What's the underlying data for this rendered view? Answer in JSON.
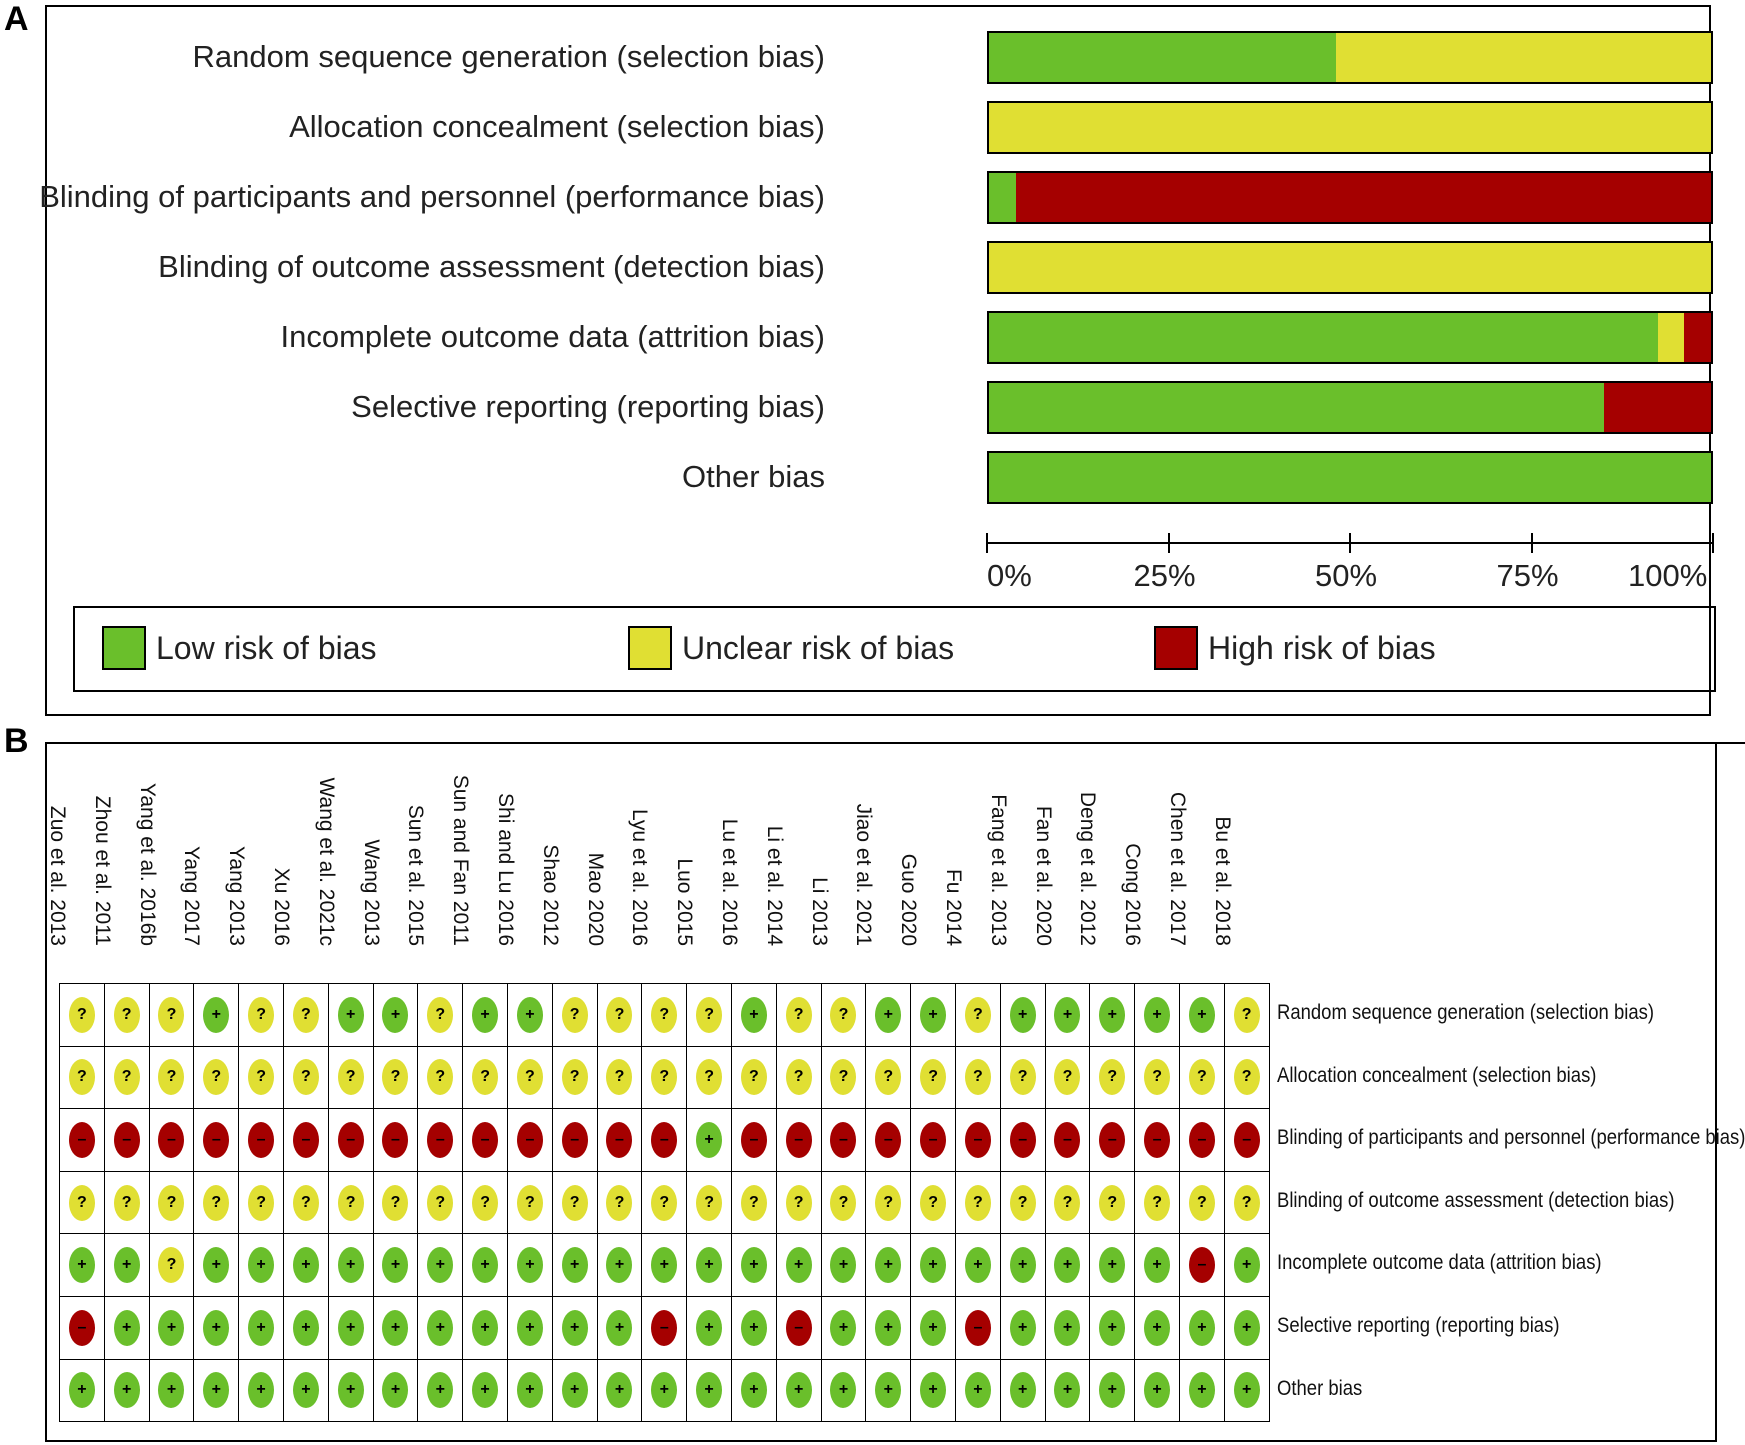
{
  "panel_labels": {
    "a": "A",
    "b": "B"
  },
  "colors": {
    "low": "#6abf2b",
    "unclear": "#e0df33",
    "high": "#a50000"
  },
  "symbols": {
    "low": "+",
    "unclear": "?",
    "high": "–"
  },
  "chart_data": [
    {
      "type": "bar",
      "orientation": "horizontal-stacked-percent",
      "title": "",
      "categories": [
        "Random sequence generation (selection bias)",
        "Allocation concealment (selection bias)",
        "Blinding of participants and personnel (performance bias)",
        "Blinding of outcome assessment (detection bias)",
        "Incomplete outcome data (attrition bias)",
        "Selective reporting (reporting bias)",
        "Other bias"
      ],
      "series": [
        {
          "name": "Low risk of bias",
          "key": "low",
          "values": [
            48.1,
            0,
            3.7,
            0,
            92.6,
            85.2,
            100
          ]
        },
        {
          "name": "Unclear risk of bias",
          "key": "unclear",
          "values": [
            51.9,
            100,
            0,
            100,
            3.7,
            0,
            0
          ]
        },
        {
          "name": "High risk of bias",
          "key": "high",
          "values": [
            0,
            0,
            96.3,
            0,
            3.7,
            14.8,
            0
          ]
        }
      ],
      "xlim": [
        0,
        100
      ],
      "xticks": [
        "0%",
        "25%",
        "50%",
        "75%",
        "100%"
      ],
      "legend": "bottom"
    },
    {
      "type": "table",
      "studies": [
        "Zuo et al. 2013",
        "Zhou et al. 2011",
        "Yang et al. 2016b",
        "Yang 2017",
        "Yang 2013",
        "Xu 2016",
        "Wang et al. 2021c",
        "Wang 2013",
        "Sun et al. 2015",
        "Sun and Fan 2011",
        "Shi and Lu 2016",
        "Shao 2012",
        "Mao 2020",
        "Lyu et al. 2016",
        "Luo 2015",
        "Lu et al. 2016",
        "Li et al. 2014",
        "Li 2013",
        "Jiao et al. 2021",
        "Guo 2020",
        "Fu 2014",
        "Fang et al. 2013",
        "Fan et al. 2020",
        "Deng et al. 2012",
        "Cong 2016",
        "Chen et al. 2017",
        "Bu et al. 2018"
      ],
      "domains": [
        "Random sequence generation (selection bias)",
        "Allocation concealment (selection bias)",
        "Blinding of participants and personnel (performance bias)",
        "Blinding of outcome assessment (detection bias)",
        "Incomplete outcome data (attrition bias)",
        "Selective reporting (reporting bias)",
        "Other bias"
      ],
      "judgements": [
        [
          "U",
          "U",
          "U",
          "L",
          "U",
          "U",
          "L",
          "L",
          "U",
          "L",
          "L",
          "U",
          "U",
          "U",
          "U",
          "L",
          "U",
          "U",
          "L",
          "L",
          "U",
          "L",
          "L",
          "L",
          "L",
          "L",
          "U"
        ],
        [
          "U",
          "U",
          "U",
          "U",
          "U",
          "U",
          "U",
          "U",
          "U",
          "U",
          "U",
          "U",
          "U",
          "U",
          "U",
          "U",
          "U",
          "U",
          "U",
          "U",
          "U",
          "U",
          "U",
          "U",
          "U",
          "U",
          "U"
        ],
        [
          "H",
          "H",
          "H",
          "H",
          "H",
          "H",
          "H",
          "H",
          "H",
          "H",
          "H",
          "H",
          "H",
          "H",
          "L",
          "H",
          "H",
          "H",
          "H",
          "H",
          "H",
          "H",
          "H",
          "H",
          "H",
          "H",
          "H"
        ],
        [
          "U",
          "U",
          "U",
          "U",
          "U",
          "U",
          "U",
          "U",
          "U",
          "U",
          "U",
          "U",
          "U",
          "U",
          "U",
          "U",
          "U",
          "U",
          "U",
          "U",
          "U",
          "U",
          "U",
          "U",
          "U",
          "U",
          "U"
        ],
        [
          "L",
          "L",
          "U",
          "L",
          "L",
          "L",
          "L",
          "L",
          "L",
          "L",
          "L",
          "L",
          "L",
          "L",
          "L",
          "L",
          "L",
          "L",
          "L",
          "L",
          "L",
          "L",
          "L",
          "L",
          "L",
          "H",
          "L"
        ],
        [
          "H",
          "L",
          "L",
          "L",
          "L",
          "L",
          "L",
          "L",
          "L",
          "L",
          "L",
          "L",
          "L",
          "H",
          "L",
          "L",
          "H",
          "L",
          "L",
          "L",
          "H",
          "L",
          "L",
          "L",
          "L",
          "L",
          "L"
        ],
        [
          "L",
          "L",
          "L",
          "L",
          "L",
          "L",
          "L",
          "L",
          "L",
          "L",
          "L",
          "L",
          "L",
          "L",
          "L",
          "L",
          "L",
          "L",
          "L",
          "L",
          "L",
          "L",
          "L",
          "L",
          "L",
          "L",
          "L"
        ]
      ]
    }
  ]
}
